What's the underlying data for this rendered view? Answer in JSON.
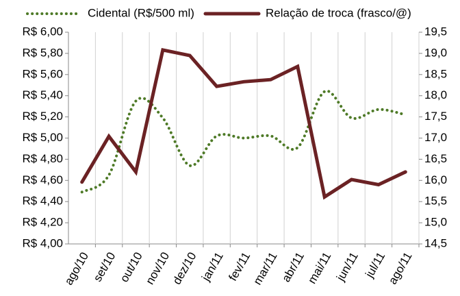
{
  "chart_data": {
    "type": "line",
    "categories": [
      "ago/10",
      "set/10",
      "out/10",
      "nov/10",
      "dez/10",
      "jan/11",
      "fev/11",
      "mar/11",
      "abr/11",
      "mai/11",
      "jun/11",
      "jul/11",
      "ago/11"
    ],
    "series": [
      {
        "name": "Cidental (R$/500 ml)",
        "color": "#4e7a27",
        "style": "dotted",
        "smooth": true,
        "axis": "y",
        "values": [
          4.49,
          4.65,
          5.35,
          5.19,
          4.74,
          5.02,
          5.0,
          5.02,
          4.91,
          5.44,
          5.19,
          5.27,
          5.22
        ]
      },
      {
        "name": "Relação de troca (frasco/@)",
        "color": "#6b2224",
        "style": "solid",
        "smooth": false,
        "axis": "y2",
        "values": [
          15.96,
          17.04,
          16.2,
          19.08,
          18.95,
          18.22,
          18.33,
          18.38,
          18.69,
          15.61,
          16.02,
          15.9,
          16.2
        ]
      }
    ],
    "ylim": [
      4.0,
      6.0
    ],
    "yticks": [
      {
        "value": 4.0,
        "label": "R$ 4,00"
      },
      {
        "value": 4.2,
        "label": "R$ 4,20"
      },
      {
        "value": 4.4,
        "label": "R$ 4,40"
      },
      {
        "value": 4.6,
        "label": "R$ 4,60"
      },
      {
        "value": 4.8,
        "label": "R$ 4,80"
      },
      {
        "value": 5.0,
        "label": "R$ 5,00"
      },
      {
        "value": 5.2,
        "label": "R$ 5,20"
      },
      {
        "value": 5.4,
        "label": "R$ 5,40"
      },
      {
        "value": 5.6,
        "label": "R$ 5,60"
      },
      {
        "value": 5.8,
        "label": "R$ 5,80"
      },
      {
        "value": 6.0,
        "label": "R$ 6,00"
      }
    ],
    "y2lim": [
      14.5,
      19.5
    ],
    "y2ticks": [
      {
        "value": 14.5,
        "label": "14,5"
      },
      {
        "value": 15.0,
        "label": "15,0"
      },
      {
        "value": 15.5,
        "label": "15,5"
      },
      {
        "value": 16.0,
        "label": "16,0"
      },
      {
        "value": 16.5,
        "label": "16,5"
      },
      {
        "value": 17.0,
        "label": "17,0"
      },
      {
        "value": 17.5,
        "label": "17,5"
      },
      {
        "value": 18.0,
        "label": "18,0"
      },
      {
        "value": 18.5,
        "label": "18,5"
      },
      {
        "value": 19.0,
        "label": "19,0"
      },
      {
        "value": 19.5,
        "label": "19,5"
      }
    ],
    "grid": "x",
    "legend": "top"
  }
}
